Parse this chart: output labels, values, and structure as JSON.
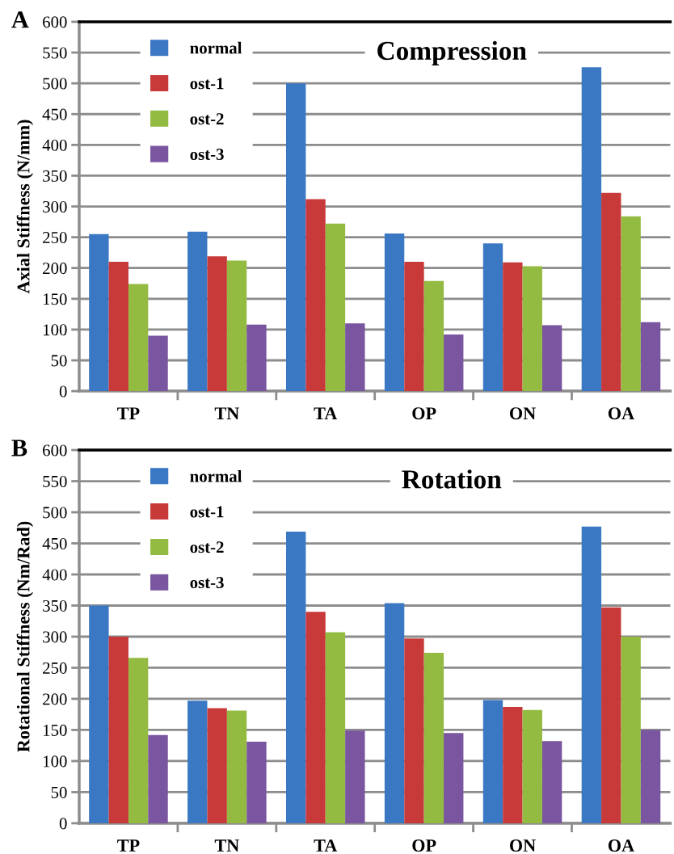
{
  "chart_data": [
    {
      "type": "bar",
      "title": "Compression",
      "ylabel": "Axial Stiffness (N/mm)",
      "annotations": [
        "A"
      ],
      "categories": [
        "TP",
        "TN",
        "TA",
        "OP",
        "ON",
        "OA"
      ],
      "series": [
        {
          "name": "normal",
          "color": "#3a78c4",
          "values": [
            255,
            259,
            500,
            256,
            240,
            526
          ]
        },
        {
          "name": "ost-1",
          "color": "#c8393a",
          "values": [
            210,
            219,
            312,
            210,
            209,
            322
          ]
        },
        {
          "name": "ost-2",
          "color": "#93bb42",
          "values": [
            174,
            212,
            272,
            179,
            203,
            284
          ]
        },
        {
          "name": "ost-3",
          "color": "#7a55a0",
          "values": [
            90,
            108,
            110,
            92,
            107,
            112
          ]
        }
      ],
      "ylim": [
        0,
        600
      ],
      "yticks": [
        0,
        50,
        100,
        150,
        200,
        250,
        300,
        350,
        400,
        450,
        500,
        550,
        600
      ],
      "grid": "y",
      "legend": "top left"
    },
    {
      "type": "bar",
      "title": "Rotation",
      "ylabel": "Rotational Stiffness (Nm/Rad)",
      "annotations": [
        "B"
      ],
      "categories": [
        "TP",
        "TN",
        "TA",
        "OP",
        "ON",
        "OA"
      ],
      "series": [
        {
          "name": "normal",
          "color": "#3a78c4",
          "values": [
            350,
            197,
            469,
            354,
            198,
            477
          ]
        },
        {
          "name": "ost-1",
          "color": "#c8393a",
          "values": [
            300,
            185,
            340,
            297,
            187,
            347
          ]
        },
        {
          "name": "ost-2",
          "color": "#93bb42",
          "values": [
            266,
            181,
            307,
            274,
            182,
            300
          ]
        },
        {
          "name": "ost-3",
          "color": "#7a55a0",
          "values": [
            142,
            131,
            149,
            145,
            132,
            150
          ]
        }
      ],
      "ylim": [
        0,
        600
      ],
      "yticks": [
        0,
        50,
        100,
        150,
        200,
        250,
        300,
        350,
        400,
        450,
        500,
        550,
        600
      ],
      "grid": "y",
      "legend": "top left"
    }
  ]
}
